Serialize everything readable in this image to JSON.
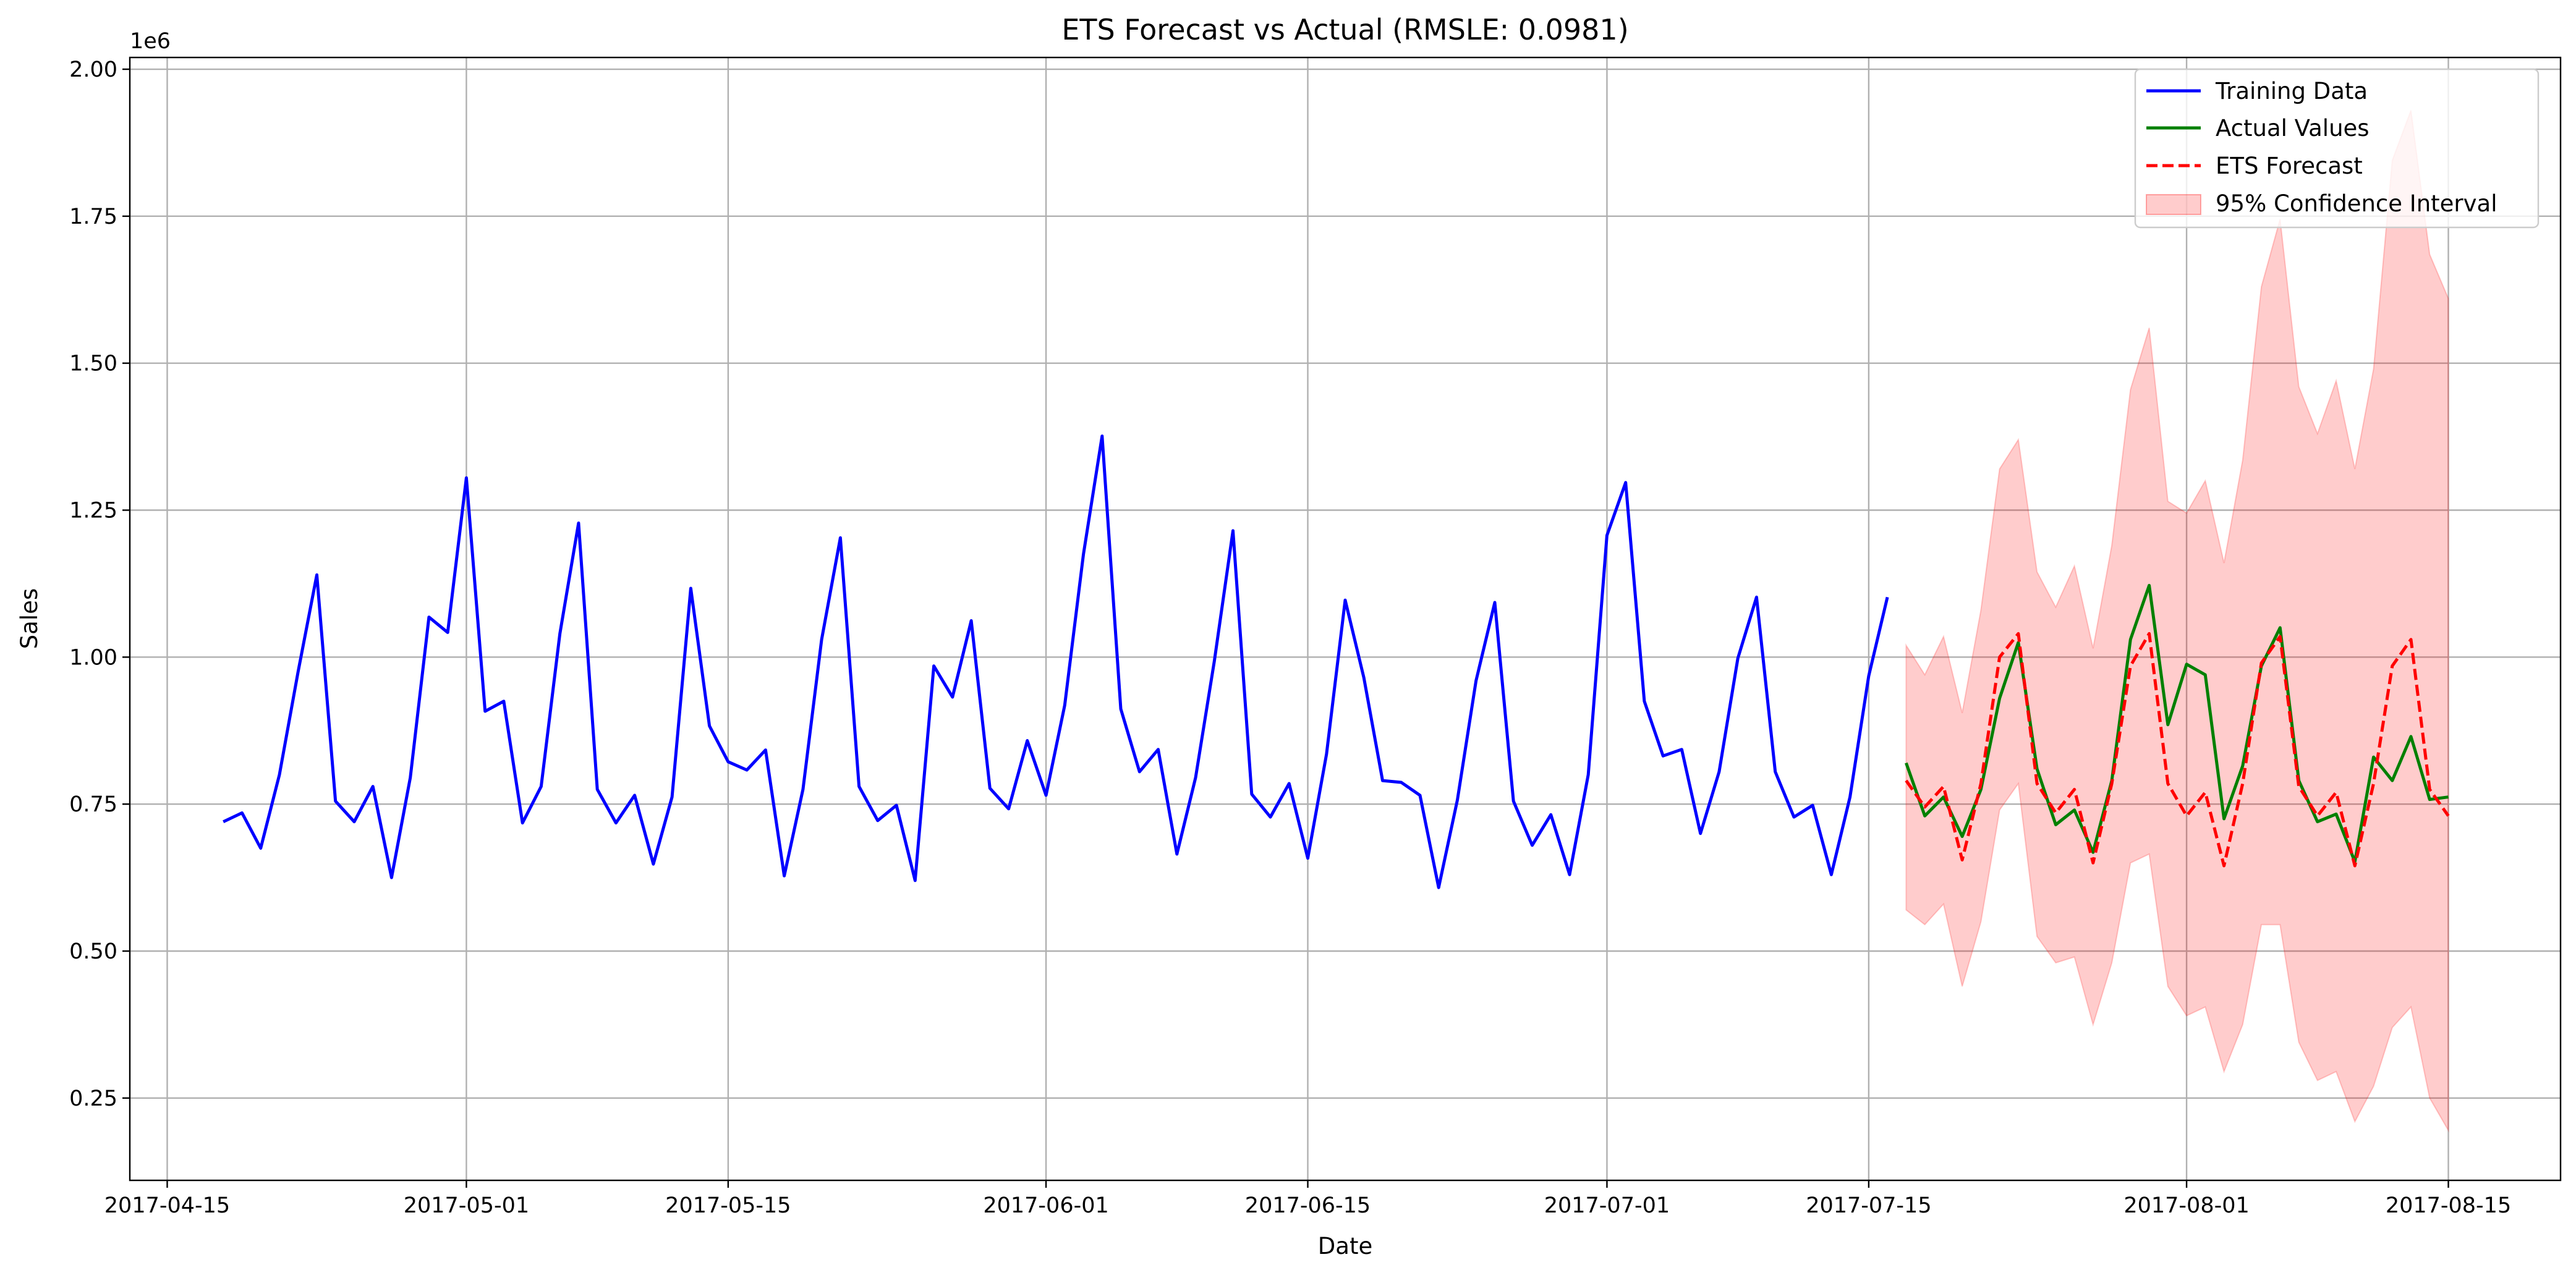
{
  "chart_data": {
    "type": "line",
    "title": "ETS Forecast vs Actual (RMSLE: 0.0981)",
    "xlabel": "Date",
    "ylabel": "Sales",
    "y_offset_label": "1e6",
    "x_range": [
      "2017-04-13",
      "2017-08-21"
    ],
    "ylim": [
      0.11,
      2.02
    ],
    "x_ticks": [
      "2017-04-15",
      "2017-05-01",
      "2017-05-15",
      "2017-06-01",
      "2017-06-15",
      "2017-07-01",
      "2017-07-15",
      "2017-08-01",
      "2017-08-15"
    ],
    "y_ticks": [
      0.25,
      0.5,
      0.75,
      1.0,
      1.25,
      1.5,
      1.75,
      2.0
    ],
    "y_tick_labels": [
      "0.25",
      "0.50",
      "0.75",
      "1.00",
      "1.25",
      "1.50",
      "1.75",
      "2.00"
    ],
    "grid": true,
    "legend_position": "top-right",
    "training": {
      "name": "Training Data",
      "color": "#0000ff",
      "start_date": "2017-04-18",
      "values": [
        0.72,
        0.735,
        0.675,
        0.8,
        0.975,
        1.14,
        0.755,
        0.72,
        0.78,
        0.625,
        0.795,
        1.068,
        1.042,
        1.305,
        0.908,
        0.925,
        0.718,
        0.78,
        1.04,
        1.228,
        0.775,
        0.718,
        0.765,
        0.648,
        0.762,
        1.117,
        0.883,
        0.822,
        0.808,
        0.842,
        0.628,
        0.775,
        1.03,
        1.203,
        0.78,
        0.722,
        0.748,
        0.62,
        0.985,
        0.932,
        1.062,
        0.777,
        0.742,
        0.858,
        0.765,
        0.918,
        1.175,
        1.376,
        0.912,
        0.805,
        0.843,
        0.665,
        0.795,
        0.993,
        1.215,
        0.767,
        0.728,
        0.785,
        0.658,
        0.835,
        1.097,
        0.965,
        0.79,
        0.787,
        0.765,
        0.608,
        0.757,
        0.96,
        1.093,
        0.755,
        0.68,
        0.732,
        0.63,
        0.8,
        1.207,
        1.297,
        0.925,
        0.832,
        0.843,
        0.7,
        0.805,
        0.998,
        1.102,
        0.805,
        0.728,
        0.748,
        0.63,
        0.762,
        0.968,
        1.102
      ]
    },
    "actual": {
      "name": "Actual Values",
      "color": "#008000",
      "start_date": "2017-07-17",
      "values": [
        0.82,
        0.73,
        0.762,
        0.695,
        0.775,
        0.93,
        1.025,
        0.81,
        0.715,
        0.74,
        0.668,
        0.79,
        1.03,
        1.122,
        0.885,
        0.988,
        0.97,
        0.725,
        0.815,
        0.985,
        1.05,
        0.79,
        0.72,
        0.733,
        0.652,
        0.83,
        0.79,
        0.865,
        0.758,
        0.762
      ]
    },
    "forecast": {
      "name": "ETS Forecast",
      "color": "#ff0000",
      "start_date": "2017-07-17",
      "values": [
        0.79,
        0.745,
        0.78,
        0.655,
        0.785,
        1.0,
        1.04,
        0.785,
        0.735,
        0.775,
        0.65,
        0.785,
        0.985,
        1.04,
        0.785,
        0.73,
        0.77,
        0.645,
        0.785,
        0.99,
        1.035,
        0.78,
        0.73,
        0.77,
        0.645,
        0.785,
        0.985,
        1.03,
        0.775,
        0.73
      ]
    },
    "confidence_interval": {
      "name": "95% Confidence Interval",
      "color": "#ff0000",
      "start_date": "2017-07-17",
      "lower": [
        0.57,
        0.545,
        0.58,
        0.44,
        0.55,
        0.74,
        0.785,
        0.525,
        0.48,
        0.49,
        0.375,
        0.48,
        0.65,
        0.665,
        0.44,
        0.39,
        0.405,
        0.295,
        0.375,
        0.545,
        0.545,
        0.345,
        0.28,
        0.295,
        0.21,
        0.27,
        0.37,
        0.405,
        0.25,
        0.195
      ],
      "upper": [
        1.02,
        0.97,
        1.035,
        0.905,
        1.08,
        1.32,
        1.37,
        1.145,
        1.085,
        1.155,
        1.015,
        1.19,
        1.455,
        1.56,
        1.265,
        1.245,
        1.3,
        1.16,
        1.335,
        1.63,
        1.745,
        1.46,
        1.38,
        1.47,
        1.32,
        1.49,
        1.845,
        1.93,
        1.685,
        1.61
      ]
    }
  }
}
